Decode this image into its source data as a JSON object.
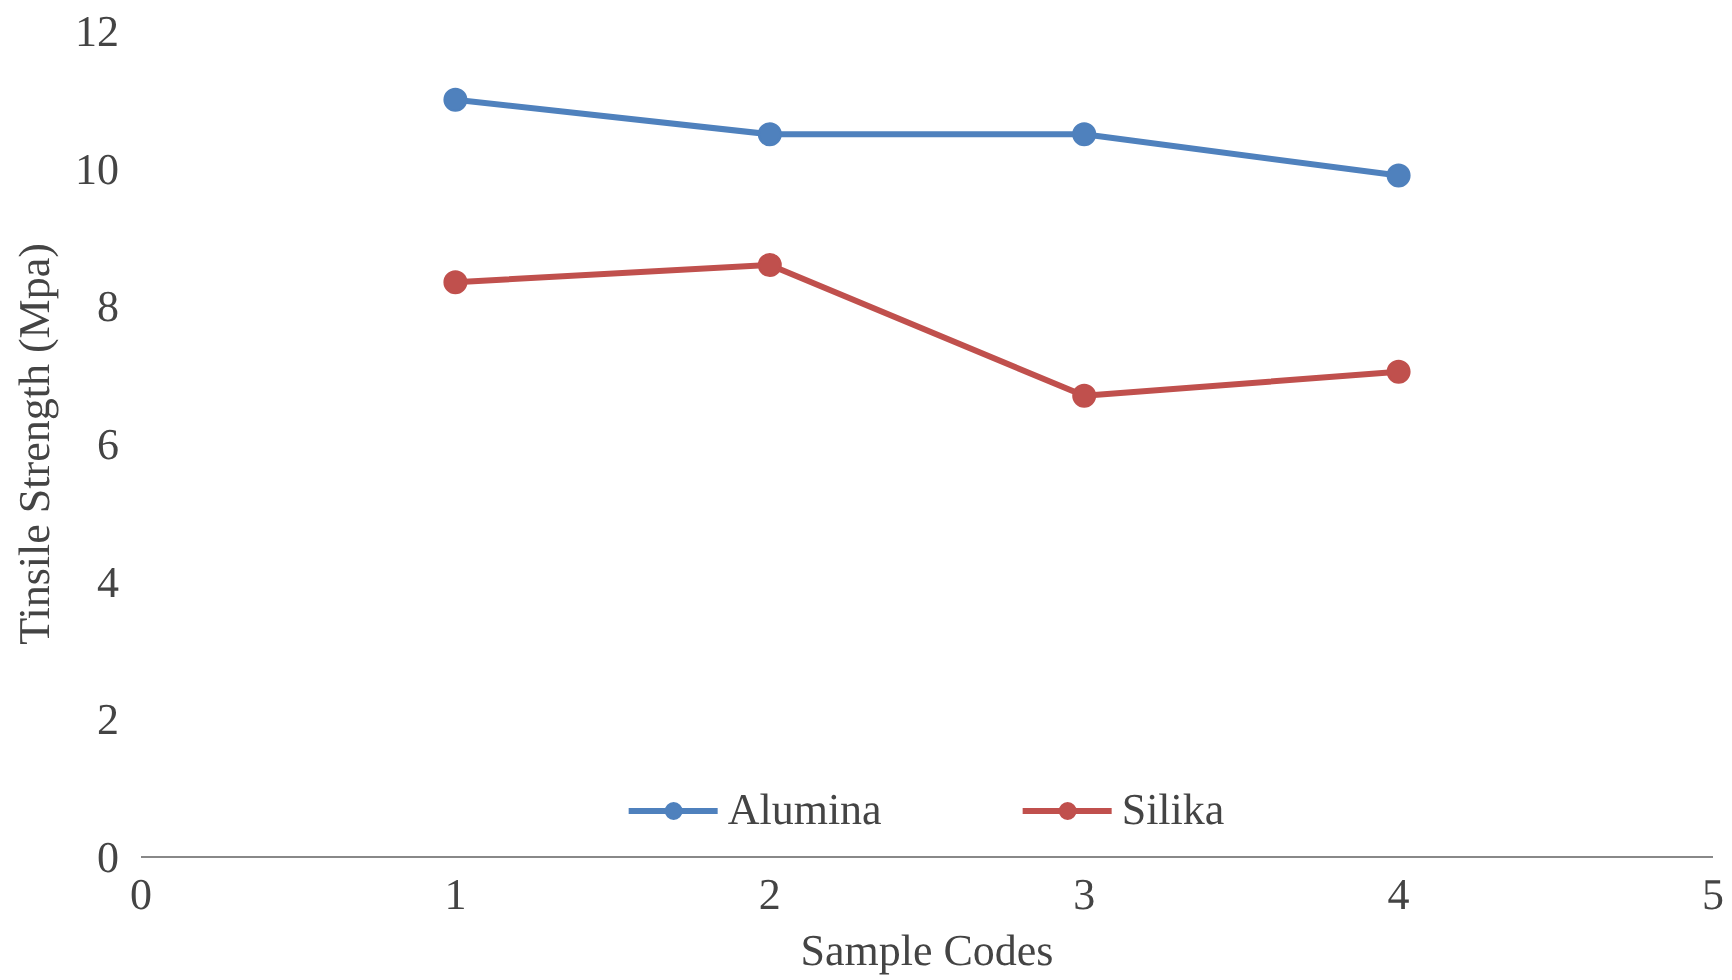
{
  "chart_data": {
    "type": "line",
    "xlabel": "Sample Codes",
    "ylabel": "Tinsile Strength (Mpa)",
    "x": [
      1,
      2,
      3,
      4
    ],
    "series": [
      {
        "name": "Alumina",
        "color": "#4f81bd",
        "values": [
          11.0,
          10.5,
          10.5,
          9.9
        ]
      },
      {
        "name": "Silika",
        "color": "#c0504d",
        "values": [
          8.35,
          8.6,
          6.7,
          7.05
        ]
      }
    ],
    "xlim": [
      0,
      5
    ],
    "xticks": [
      0,
      1,
      2,
      3,
      4,
      5
    ],
    "ylim": [
      0,
      12
    ],
    "yticks": [
      0,
      2,
      4,
      6,
      8,
      10,
      12
    ],
    "grid": false,
    "legend": "bottom",
    "marker": "circle",
    "line_style": "solid"
  }
}
